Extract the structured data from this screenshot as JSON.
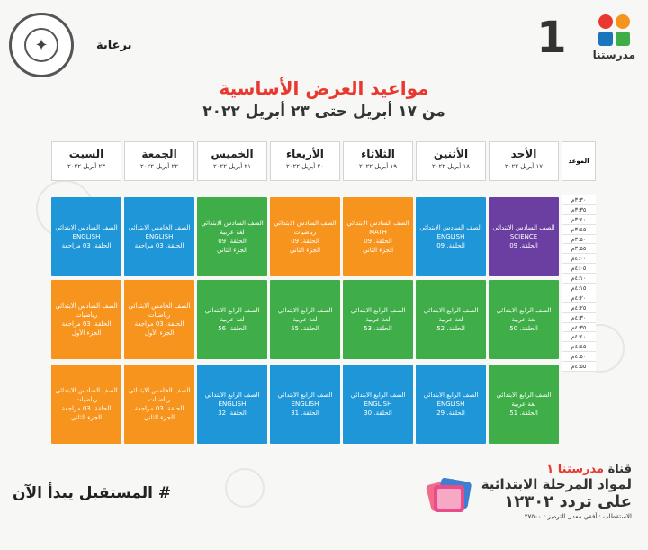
{
  "header": {
    "sponsor_label": "برعاية",
    "channel_number": "1",
    "logo_text": "مدرستنا",
    "logo_colors": [
      "#e9392f",
      "#f7941d",
      "#1b75bc",
      "#3fae49"
    ],
    "seal_icon": "ministry-seal"
  },
  "title": "مواعيد العرض الأساسية",
  "subtitle": "من ١٧ أبريل حتى ٢٣ أبريل ٢٠٢٢",
  "time_header": "الموعد",
  "days": [
    {
      "name": "الأحد",
      "date": "١٧ أبريل ٢٠٢٢"
    },
    {
      "name": "الأثنين",
      "date": "١٨ أبريل ٢٠٢٢"
    },
    {
      "name": "الثلاثاء",
      "date": "١٩ أبريل ٢٠٢٢"
    },
    {
      "name": "الأربعاء",
      "date": "٢٠ أبريل ٢٠٢٢"
    },
    {
      "name": "الخميس",
      "date": "٢١ أبريل ٢٠٢٢"
    },
    {
      "name": "الجمعة",
      "date": "٢٢ أبريل ٢٠٢٢"
    },
    {
      "name": "السبت",
      "date": "٢٣ أبريل ٢٠٢٢"
    }
  ],
  "times": [
    "٣:٣٠م",
    "٣:٣٥م",
    "٣:٤٠م",
    "٣:٤٥م",
    "٣:٥٠م",
    "٣:٥٥م",
    "٤:٠٠م",
    "٤:٠٥م",
    "٤:١٠م",
    "٤:١٥م",
    "٤:٢٠م",
    "٤:٢٥م",
    "٤:٣٠م",
    "٤:٣٥م",
    "٤:٤٠م",
    "٤:٤٥م",
    "٤:٥٠م",
    "٤:٥٥م"
  ],
  "colors": {
    "purple": "#6a3fa1",
    "blue": "#1f96d8",
    "green": "#3fae49",
    "orange": "#f7941d"
  },
  "slots": [
    [
      {
        "color": "purple",
        "lines": [
          "الصف السادس الابتدائي",
          "SCIENCE",
          "الحلقة. 09"
        ]
      },
      {
        "color": "blue",
        "lines": [
          "الصف السادس الابتدائي",
          "ENGLISH",
          "الحلقة. 09"
        ]
      },
      {
        "color": "orange",
        "lines": [
          "الصف السادس الابتدائي",
          "MATH",
          "الحلقة. 09",
          "الجزء الثاني"
        ]
      },
      {
        "color": "orange",
        "lines": [
          "الصف السادس الابتدائي",
          "رياضيات",
          "الحلقة. 09",
          "الجزء الثاني"
        ]
      },
      {
        "color": "green",
        "lines": [
          "الصف السادس الابتدائي",
          "لغة عربية",
          "الحلقة. 09",
          "الجزء الثاني"
        ]
      },
      {
        "color": "blue",
        "lines": [
          "الصف الخامس الابتدائي",
          "ENGLISH",
          "الحلقة. 03 مراجعة"
        ]
      },
      {
        "color": "blue",
        "lines": [
          "الصف السادس الابتدائي",
          "ENGLISH",
          "الحلقة. 03 مراجعة"
        ]
      }
    ],
    [
      {
        "color": "green",
        "lines": [
          "الصف الرابع الابتدائي",
          "لغة عربية",
          "الحلقة. 50"
        ]
      },
      {
        "color": "green",
        "lines": [
          "الصف الرابع الابتدائي",
          "لغة عربية",
          "الحلقة. 52"
        ]
      },
      {
        "color": "green",
        "lines": [
          "الصف الرابع الابتدائي",
          "لغة عربية",
          "الحلقة. 53"
        ]
      },
      {
        "color": "green",
        "lines": [
          "الصف الرابع الابتدائي",
          "لغة عربية",
          "الحلقة. 55"
        ]
      },
      {
        "color": "green",
        "lines": [
          "الصف الرابع الابتدائي",
          "لغة عربية",
          "الحلقة. 56"
        ]
      },
      {
        "color": "orange",
        "lines": [
          "الصف الخامس الابتدائي",
          "رياضيات",
          "الحلقة. 03 مراجعة",
          "الجزء الأول"
        ]
      },
      {
        "color": "orange",
        "lines": [
          "الصف السادس الابتدائي",
          "رياضيات",
          "الحلقة. 03 مراجعة",
          "الجزء الأول"
        ]
      }
    ],
    [
      {
        "color": "green",
        "lines": [
          "الصف الرابع الابتدائي",
          "لغة عربية",
          "الحلقة. 51"
        ]
      },
      {
        "color": "blue",
        "lines": [
          "الصف الرابع الابتدائي",
          "ENGLISH",
          "الحلقة. 29"
        ]
      },
      {
        "color": "blue",
        "lines": [
          "الصف الرابع الابتدائي",
          "ENGLISH",
          "الحلقة. 30"
        ]
      },
      {
        "color": "blue",
        "lines": [
          "الصف الرابع الابتدائي",
          "ENGLISH",
          "الحلقة. 31"
        ]
      },
      {
        "color": "blue",
        "lines": [
          "الصف الرابع الابتدائي",
          "ENGLISH",
          "الحلقة. 32"
        ]
      },
      {
        "color": "orange",
        "lines": [
          "الصف الخامس الابتدائي",
          "رياضيات",
          "الحلقة. 03 مراجعة",
          "الجزء الثاني"
        ]
      },
      {
        "color": "orange",
        "lines": [
          "الصف السادس الابتدائي",
          "رياضيات",
          "الحلقة. 03 مراجعة",
          "الجزء الثاني"
        ]
      }
    ]
  ],
  "footer": {
    "channel_prefix": "قناة",
    "channel_name": "مدرستنا ١",
    "line2": "لمواد المرحلة الابتدائية",
    "line3": "على تردد ١٢٣٠٢",
    "line4": "الاستقطاب : أفقي معدل الترميز : ٢٧٥٠٠",
    "hashtag": "# المستقبل يبدأ الآن",
    "tablet_icon": "tablet-stack-icon"
  }
}
